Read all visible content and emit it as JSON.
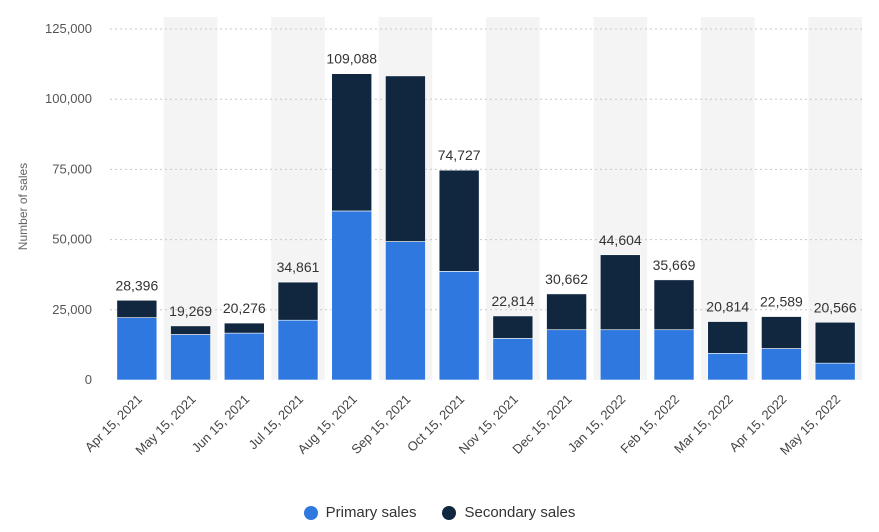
{
  "chart_data": {
    "type": "bar",
    "stacked": true,
    "ylabel": "Number of sales",
    "xlabel": "",
    "ylim": [
      0,
      125000
    ],
    "yticks": [
      0,
      25000,
      50000,
      75000,
      100000,
      125000
    ],
    "ytick_labels": [
      "0",
      "25,000",
      "50,000",
      "75,000",
      "100,000",
      "125,000"
    ],
    "grid": true,
    "legend_position": "bottom",
    "categories": [
      "Apr 15, 2021",
      "May 15, 2021",
      "Jun 15, 2021",
      "Jul 15, 2021",
      "Aug 15, 2021",
      "Sep 15, 2021",
      "Oct 15, 2021",
      "Nov 15, 2021",
      "Dec 15, 2021",
      "Jan 15, 2022",
      "Feb 15, 2022",
      "Mar 15, 2022",
      "Apr 15, 2022",
      "May 15, 2022"
    ],
    "series": [
      {
        "name": "Primary sales",
        "color": "#2f78e0",
        "values": [
          22200,
          16200,
          16700,
          21300,
          60200,
          49300,
          38700,
          14800,
          17900,
          17900,
          17900,
          9500,
          11200,
          6000
        ]
      },
      {
        "name": "Secondary sales",
        "color": "#11263f",
        "values": [
          6196,
          3069,
          3576,
          13561,
          48888,
          59000,
          36027,
          8014,
          12762,
          26704,
          17769,
          11314,
          11389,
          14566
        ]
      }
    ],
    "totals_labels": [
      "28,396",
      "19,269",
      "20,276",
      "34,861",
      "109,088",
      "",
      "74,727",
      "22,814",
      "30,662",
      "44,604",
      "35,669",
      "20,814",
      "22,589",
      "20,566"
    ],
    "colors": {
      "background_band": "#f4f4f4",
      "grid": "#c8c8c8"
    }
  }
}
